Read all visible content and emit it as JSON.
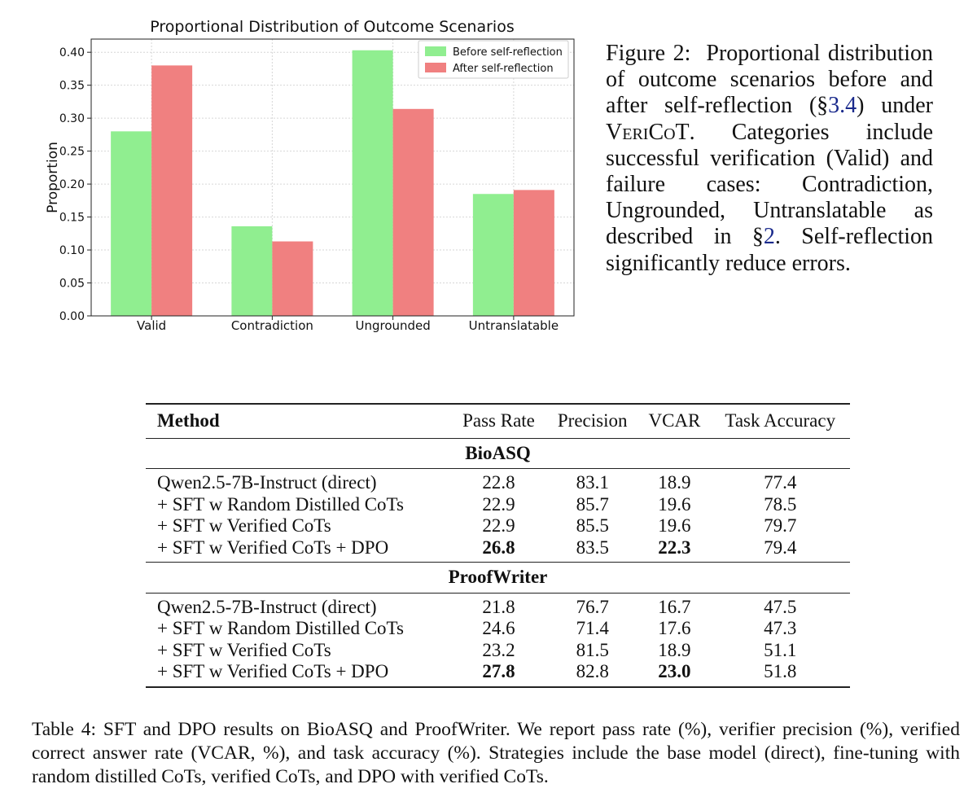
{
  "chart_data": {
    "type": "bar",
    "title": "Proportional Distribution of Outcome Scenarios",
    "xlabel": "",
    "ylabel": "Proportion",
    "categories": [
      "Valid",
      "Contradiction",
      "Ungrounded",
      "Untranslatable"
    ],
    "series": [
      {
        "name": "Before self-reflection",
        "color": "#90ee90",
        "values": [
          0.28,
          0.136,
          0.403,
          0.185
        ]
      },
      {
        "name": "After self-reflection",
        "color": "#f08080",
        "values": [
          0.38,
          0.113,
          0.314,
          0.191
        ]
      }
    ],
    "ylim": [
      0,
      0.42
    ],
    "yticks": [
      "0.00",
      "0.05",
      "0.10",
      "0.15",
      "0.20",
      "0.25",
      "0.30",
      "0.35",
      "0.40"
    ],
    "grid": true,
    "legend": "top-right"
  },
  "figure_caption": {
    "label": "Figure 2:",
    "text_1": "Proportional distribution of outcome scenarios before and after self-reflection (§",
    "ref_1": "3.4",
    "text_2": ") under ",
    "system_name": "VeriCoT",
    "text_3": ". Categories include successful verification (Valid) and failure cases: Contradiction, Ungrounded, Untranslatable as described in §",
    "ref_2": "2",
    "text_4": ". Self-reflection significantly reduce errors."
  },
  "table": {
    "headers": [
      "Method",
      "Pass Rate",
      "Precision",
      "VCAR",
      "Task Accuracy"
    ],
    "sections": [
      {
        "name": "BioASQ",
        "rows": [
          {
            "method": "Qwen2.5-7B-Instruct (direct)",
            "pass_rate": "22.8",
            "precision": "83.1",
            "vcar": "18.9",
            "task_accuracy": "77.4"
          },
          {
            "method": "+ SFT w Random Distilled CoTs",
            "pass_rate": "22.9",
            "precision": "85.7",
            "vcar": "19.6",
            "task_accuracy": "78.5"
          },
          {
            "method": "+ SFT w Verified CoTs",
            "pass_rate": "22.9",
            "precision": "85.5",
            "vcar": "19.6",
            "task_accuracy": "79.7"
          },
          {
            "method": "+ SFT w Verified CoTs + DPO",
            "pass_rate": "26.8",
            "precision": "83.5",
            "vcar": "22.3",
            "task_accuracy": "79.4"
          }
        ]
      },
      {
        "name": "ProofWriter",
        "rows": [
          {
            "method": "Qwen2.5-7B-Instruct (direct)",
            "pass_rate": "21.8",
            "precision": "76.7",
            "vcar": "16.7",
            "task_accuracy": "47.5"
          },
          {
            "method": "+ SFT w Random Distilled CoTs",
            "pass_rate": "24.6",
            "precision": "71.4",
            "vcar": "17.6",
            "task_accuracy": "47.3"
          },
          {
            "method": "+ SFT w Verified CoTs",
            "pass_rate": "23.2",
            "precision": "81.5",
            "vcar": "18.9",
            "task_accuracy": "51.1"
          },
          {
            "method": "+ SFT w Verified CoTs + DPO",
            "pass_rate": "27.8",
            "precision": "82.8",
            "vcar": "23.0",
            "task_accuracy": "51.8"
          }
        ]
      }
    ]
  },
  "table_caption": "Table 4: SFT and DPO results on BioASQ and ProofWriter. We report pass rate (%), verifier precision (%), verified correct answer rate (VCAR, %), and task accuracy (%). Strategies include the base model (direct), fine-tuning with random distilled CoTs, verified CoTs, and DPO with verified CoTs."
}
